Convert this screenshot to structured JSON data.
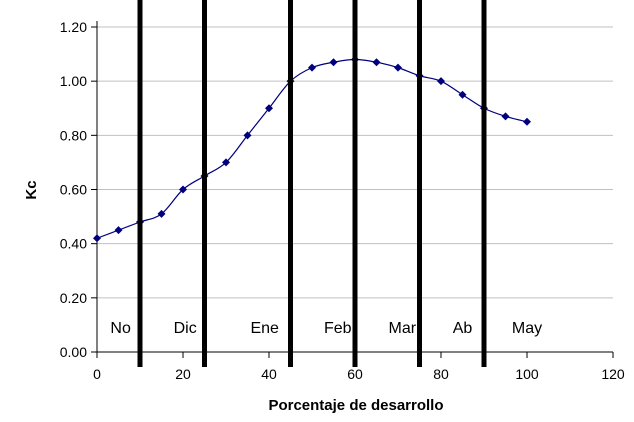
{
  "chart_data": {
    "type": "line",
    "title": "",
    "xlabel": "Porcentaje de desarrollo",
    "ylabel": "Kc",
    "xlim": [
      0,
      120
    ],
    "ylim": [
      0,
      1.2
    ],
    "x_ticks": [
      "0",
      "20",
      "40",
      "60",
      "80",
      "100",
      "120"
    ],
    "y_ticks": [
      "0.00",
      "0.20",
      "0.40",
      "0.60",
      "0.80",
      "1.00",
      "1.20"
    ],
    "grid": "horizontal",
    "legend": "none",
    "colors": {
      "series": "#00007f",
      "grid": "#c0c0c0",
      "bars": "#000000"
    },
    "series": [
      {
        "x": [
          0,
          5,
          10,
          15,
          20,
          25,
          30,
          35,
          40,
          45,
          50,
          55,
          60,
          65,
          70,
          75,
          80,
          85,
          90,
          95,
          100
        ],
        "values": [
          0.42,
          0.45,
          0.48,
          0.51,
          0.6,
          0.65,
          0.7,
          0.8,
          0.9,
          1.0,
          1.05,
          1.07,
          1.08,
          1.07,
          1.05,
          1.02,
          1.0,
          0.95,
          0.9,
          0.87,
          0.85
        ]
      }
    ],
    "month_dividers_x": [
      10,
      25,
      45,
      60,
      75,
      90
    ],
    "month_labels": [
      {
        "text": "No",
        "x": 5.5
      },
      {
        "text": "Dic",
        "x": 20.5
      },
      {
        "text": "Ene",
        "x": 39
      },
      {
        "text": "Feb",
        "x": 56
      },
      {
        "text": "Mar",
        "x": 71
      },
      {
        "text": "Ab",
        "x": 85
      },
      {
        "text": "May",
        "x": 100
      }
    ]
  }
}
